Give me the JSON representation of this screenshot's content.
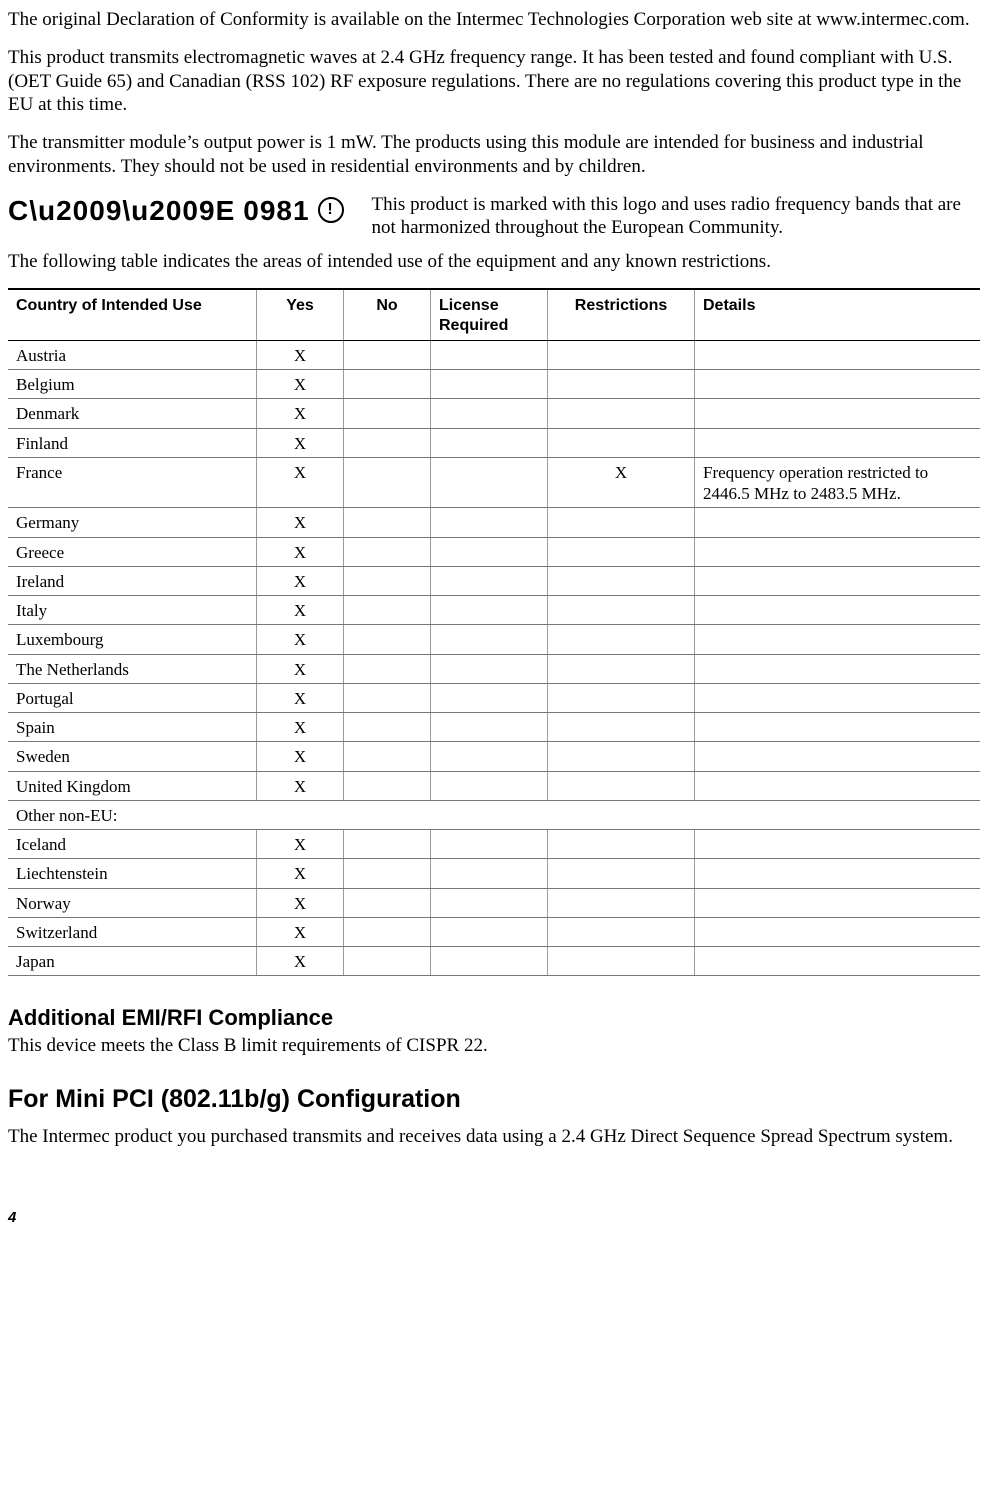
{
  "paragraphs": {
    "p1": "The original Declaration of Conformity is available on the Intermec Technologies Corporation web site at www.intermec.com.",
    "p2": "This product transmits electromagnetic waves at 2.4 GHz frequency range. It has been tested and found compliant with U.S. (OET Guide 65) and Canadian (RSS 102) RF exposure regulations. There are no regulations covering this product type in the EU at this time.",
    "p3": "The transmitter module’s output power is 1 mW. The products using this module are intended for business and industrial environments. They should not be used in residential environments and by children.",
    "ce_mark_text": "0981",
    "ce_paragraph": "This product is marked with this logo and uses radio frequency bands that are not harmonized throughout the European Community.",
    "p4": "The following table indicates the areas of intended use of the equipment and any known restrictions."
  },
  "table": {
    "headers": {
      "country": "Country of Intended Use",
      "yes": "Yes",
      "no": "No",
      "license": "License Required",
      "restrictions": "Restrictions",
      "details": "Details"
    },
    "rows": [
      {
        "country": "Austria",
        "yes": "X",
        "no": "",
        "license": "",
        "restrictions": "",
        "details": ""
      },
      {
        "country": "Belgium",
        "yes": "X",
        "no": "",
        "license": "",
        "restrictions": "",
        "details": ""
      },
      {
        "country": "Denmark",
        "yes": "X",
        "no": "",
        "license": "",
        "restrictions": "",
        "details": ""
      },
      {
        "country": "Finland",
        "yes": "X",
        "no": "",
        "license": "",
        "restrictions": "",
        "details": ""
      },
      {
        "country": "France",
        "yes": "X",
        "no": "",
        "license": "",
        "restrictions": "X",
        "details": "Frequency operation restricted to 2446.5 MHz to 2483.5 MHz."
      },
      {
        "country": "Germany",
        "yes": "X",
        "no": "",
        "license": "",
        "restrictions": "",
        "details": ""
      },
      {
        "country": "Greece",
        "yes": "X",
        "no": "",
        "license": "",
        "restrictions": "",
        "details": ""
      },
      {
        "country": "Ireland",
        "yes": "X",
        "no": "",
        "license": "",
        "restrictions": "",
        "details": ""
      },
      {
        "country": "Italy",
        "yes": "X",
        "no": "",
        "license": "",
        "restrictions": "",
        "details": ""
      },
      {
        "country": "Luxembourg",
        "yes": "X",
        "no": "",
        "license": "",
        "restrictions": "",
        "details": ""
      },
      {
        "country": "The Netherlands",
        "yes": "X",
        "no": "",
        "license": "",
        "restrictions": "",
        "details": ""
      },
      {
        "country": "Portugal",
        "yes": "X",
        "no": "",
        "license": "",
        "restrictions": "",
        "details": ""
      },
      {
        "country": "Spain",
        "yes": "X",
        "no": "",
        "license": "",
        "restrictions": "",
        "details": ""
      },
      {
        "country": "Sweden",
        "yes": "X",
        "no": "",
        "license": "",
        "restrictions": "",
        "details": ""
      },
      {
        "country": "United Kingdom",
        "yes": "X",
        "no": "",
        "license": "",
        "restrictions": "",
        "details": ""
      },
      {
        "country": "Other non-EU:",
        "section": true
      },
      {
        "country": "Iceland",
        "yes": "X",
        "no": "",
        "license": "",
        "restrictions": "",
        "details": ""
      },
      {
        "country": "Liechtenstein",
        "yes": "X",
        "no": "",
        "license": "",
        "restrictions": "",
        "details": ""
      },
      {
        "country": "Norway",
        "yes": "X",
        "no": "",
        "license": "",
        "restrictions": "",
        "details": ""
      },
      {
        "country": "Switzerland",
        "yes": "X",
        "no": "",
        "license": "",
        "restrictions": "",
        "details": ""
      },
      {
        "country": "Japan",
        "yes": "X",
        "no": "",
        "license": "",
        "restrictions": "",
        "details": ""
      }
    ]
  },
  "headings": {
    "h_emi": "Additional EMI/RFI Compliance",
    "p_emi": "This device meets the Class B limit requirements of CISPR 22.",
    "h_pci": "For Mini PCI (802.11b/g) Configuration",
    "p_pci": "The Intermec product you purchased transmits and receives data using a 2.4 GHz Direct Sequence Spread Spectrum system."
  },
  "page_number": "4"
}
